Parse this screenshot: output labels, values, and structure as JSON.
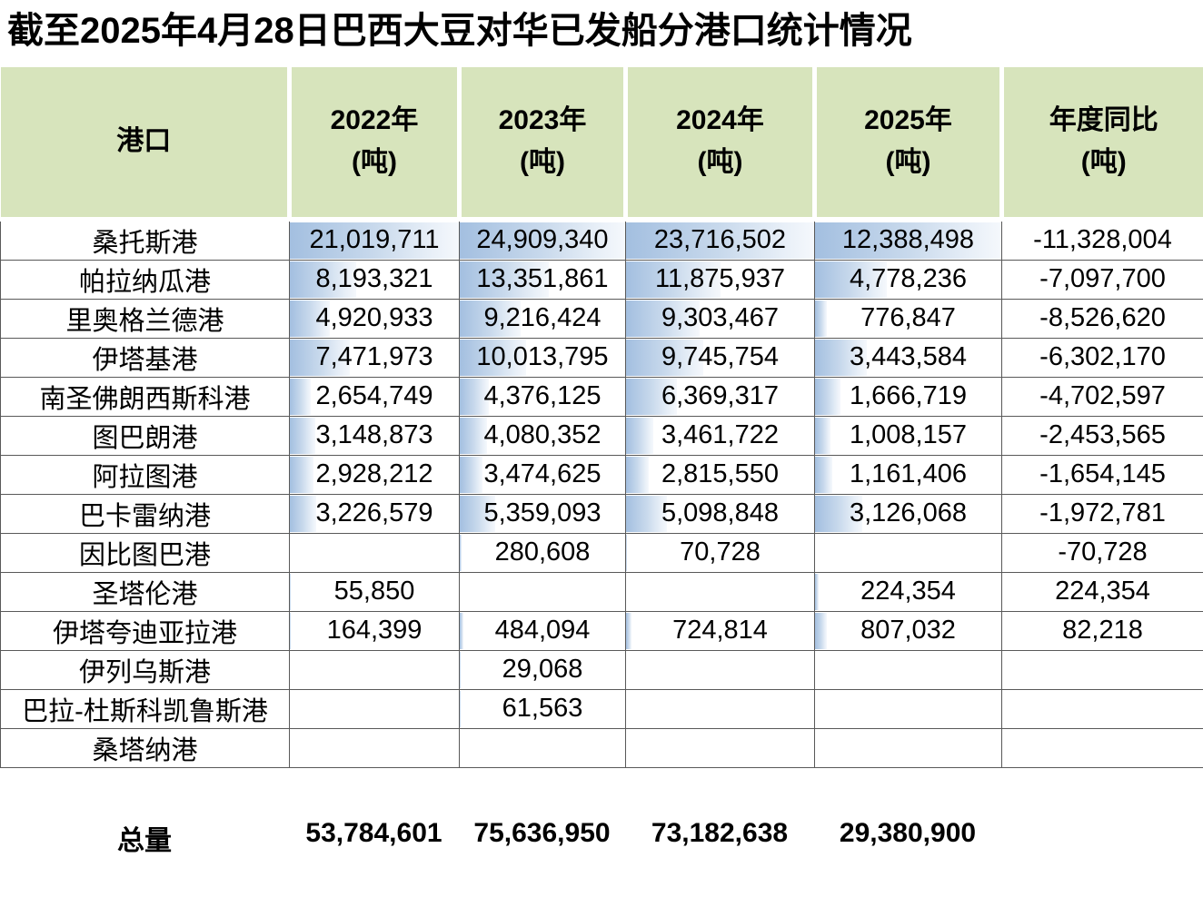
{
  "title": "截至2025年4月28日巴西大豆对华已发船分港口统计情况",
  "table": {
    "headers": [
      {
        "line1": "港口",
        "line2": ""
      },
      {
        "line1": "2022年",
        "line2": "(吨)"
      },
      {
        "line1": "2023年",
        "line2": "(吨)"
      },
      {
        "line1": "2024年",
        "line2": "(吨)"
      },
      {
        "line1": "2025年",
        "line2": "(吨)"
      },
      {
        "line1": "年度同比",
        "line2": "(吨)"
      }
    ],
    "rows": [
      {
        "port": "桑托斯港",
        "values": [
          "21,019,711",
          "24,909,340",
          "23,716,502",
          "12,388,498",
          "-11,328,004"
        ]
      },
      {
        "port": "帕拉纳瓜港",
        "values": [
          "8,193,321",
          "13,351,861",
          "11,875,937",
          "4,778,236",
          "-7,097,700"
        ]
      },
      {
        "port": "里奥格兰德港",
        "values": [
          "4,920,933",
          "9,216,424",
          "9,303,467",
          "776,847",
          "-8,526,620"
        ]
      },
      {
        "port": "伊塔基港",
        "values": [
          "7,471,973",
          "10,013,795",
          "9,745,754",
          "3,443,584",
          "-6,302,170"
        ]
      },
      {
        "port": "南圣佛朗西斯科港",
        "values": [
          "2,654,749",
          "4,376,125",
          "6,369,317",
          "1,666,719",
          "-4,702,597"
        ]
      },
      {
        "port": "图巴朗港",
        "values": [
          "3,148,873",
          "4,080,352",
          "3,461,722",
          "1,008,157",
          "-2,453,565"
        ]
      },
      {
        "port": "阿拉图港",
        "values": [
          "2,928,212",
          "3,474,625",
          "2,815,550",
          "1,161,406",
          "-1,654,145"
        ]
      },
      {
        "port": "巴卡雷纳港",
        "values": [
          "3,226,579",
          "5,359,093",
          "5,098,848",
          "3,126,068",
          "-1,972,781"
        ]
      },
      {
        "port": "因比图巴港",
        "values": [
          "",
          "280,608",
          "70,728",
          "",
          "-70,728"
        ]
      },
      {
        "port": "圣塔伦港",
        "values": [
          "55,850",
          "",
          "",
          "224,354",
          "224,354"
        ]
      },
      {
        "port": "伊塔夸迪亚拉港",
        "values": [
          "164,399",
          "484,094",
          "724,814",
          "807,032",
          "82,218"
        ]
      },
      {
        "port": "伊列乌斯港",
        "values": [
          "",
          "29,068",
          "",
          "",
          ""
        ]
      },
      {
        "port": "巴拉-杜斯科凯鲁斯港",
        "values": [
          "",
          "61,563",
          "",
          "",
          ""
        ]
      },
      {
        "port": "桑塔纳港",
        "values": [
          "",
          "",
          "",
          "",
          ""
        ]
      }
    ],
    "total": {
      "label": "总量",
      "values": [
        "53,784,601",
        "75,636,950",
        "73,182,638",
        "29,380,900",
        ""
      ]
    }
  },
  "colors": {
    "header_background": "#d7e4bc",
    "grid_line": "#595959",
    "databar_start": "#a3bfe0",
    "databar_end": "#f5f8fc",
    "text": "#000000"
  },
  "chart_data": {
    "type": "table",
    "title": "截至2025年4月28日巴西大豆对华已发船分港口统计情况",
    "columns": [
      "港口",
      "2022年(吨)",
      "2023年(吨)",
      "2024年(吨)",
      "2025年(吨)",
      "年度同比(吨)"
    ],
    "rows": [
      [
        "桑托斯港",
        21019711,
        24909340,
        23716502,
        12388498,
        -11328004
      ],
      [
        "帕拉纳瓜港",
        8193321,
        13351861,
        11875937,
        4778236,
        -7097700
      ],
      [
        "里奥格兰德港",
        4920933,
        9216424,
        9303467,
        776847,
        -8526620
      ],
      [
        "伊塔基港",
        7471973,
        10013795,
        9745754,
        3443584,
        -6302170
      ],
      [
        "南圣佛朗西斯科港",
        2654749,
        4376125,
        6369317,
        1666719,
        -4702597
      ],
      [
        "图巴朗港",
        3148873,
        4080352,
        3461722,
        1008157,
        -2453565
      ],
      [
        "阿拉图港",
        2928212,
        3474625,
        2815550,
        1161406,
        -1654145
      ],
      [
        "巴卡雷纳港",
        3226579,
        5359093,
        5098848,
        3126068,
        -1972781
      ],
      [
        "因比图巴港",
        null,
        280608,
        70728,
        null,
        -70728
      ],
      [
        "圣塔伦港",
        55850,
        null,
        null,
        224354,
        224354
      ],
      [
        "伊塔夸迪亚拉港",
        164399,
        484094,
        724814,
        807032,
        82218
      ],
      [
        "伊列乌斯港",
        null,
        29068,
        null,
        null,
        null
      ],
      [
        "巴拉-杜斯科凯鲁斯港",
        null,
        61563,
        null,
        null,
        null
      ],
      [
        "桑塔纳港",
        null,
        null,
        null,
        null,
        null
      ]
    ],
    "totals": [
      "总量",
      53784601,
      75636950,
      73182638,
      29380900,
      null
    ],
    "layout_hints": {
      "databars": "year columns 2022-2025 show blue gradient data bars scaled to each column's maximum value",
      "header_style": "light green header band with white separators",
      "gridlines": true
    }
  }
}
